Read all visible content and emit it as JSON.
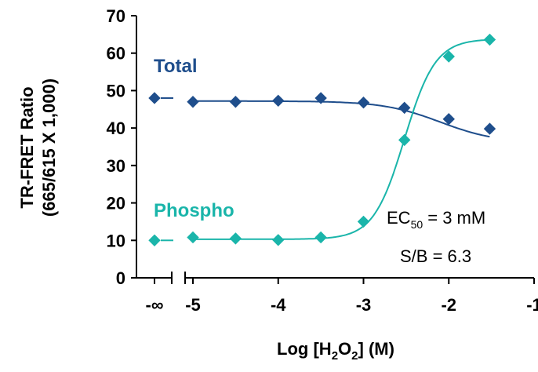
{
  "chart_data": {
    "type": "scatter",
    "xlabel": {
      "pre": "Log [H",
      "sub1": "2",
      "mid": "O",
      "sub2": "2",
      "post": "] (M)"
    },
    "ylabel_line1": "TR-FRET Ratio",
    "ylabel_line2": "(665/615 X 1,000)",
    "xlim": [
      -5.5,
      -1
    ],
    "ylim": [
      0,
      70
    ],
    "x_break": "-∞",
    "x_ticks": [
      -5,
      -4,
      -3,
      -2,
      -1
    ],
    "x_tick_labels": [
      "-5",
      "-4",
      "-3",
      "-2",
      "-1"
    ],
    "y_ticks": [
      0,
      10,
      20,
      30,
      40,
      50,
      60,
      70
    ],
    "y_tick_labels": [
      "0",
      "10",
      "20",
      "30",
      "40",
      "50",
      "60",
      "70"
    ],
    "series": [
      {
        "name": "Total",
        "color": "#1f4e8c",
        "zero_point": 48,
        "points": [
          {
            "x": -5.0,
            "y": 47
          },
          {
            "x": -4.5,
            "y": 47
          },
          {
            "x": -4.0,
            "y": 47.3
          },
          {
            "x": -3.5,
            "y": 48
          },
          {
            "x": -3.0,
            "y": 46.8
          },
          {
            "x": -2.52,
            "y": 45.4
          },
          {
            "x": -2.0,
            "y": 42.4
          },
          {
            "x": -1.52,
            "y": 39.8
          }
        ],
        "fit": {
          "top": 47.2,
          "bottom": 36,
          "ec50_log": -2.1,
          "hill": 1.3
        }
      },
      {
        "name": "Phospho",
        "color": "#1ab5aa",
        "zero_point": 10,
        "points": [
          {
            "x": -5.0,
            "y": 10.8
          },
          {
            "x": -4.5,
            "y": 10.5
          },
          {
            "x": -4.0,
            "y": 10.1
          },
          {
            "x": -3.5,
            "y": 10.8
          },
          {
            "x": -3.0,
            "y": 15
          },
          {
            "x": -2.52,
            "y": 36.8
          },
          {
            "x": -2.0,
            "y": 59.1
          },
          {
            "x": -1.52,
            "y": 63.6
          }
        ],
        "fit": {
          "top": 63.8,
          "bottom": 10.3,
          "ec50_log": -2.52,
          "hill": 2.4
        }
      }
    ],
    "annotations": {
      "ec50_pre": "EC",
      "ec50_sub": "50",
      "ec50_post": " = 3 mM",
      "sb": "S/B = 6.3"
    }
  }
}
